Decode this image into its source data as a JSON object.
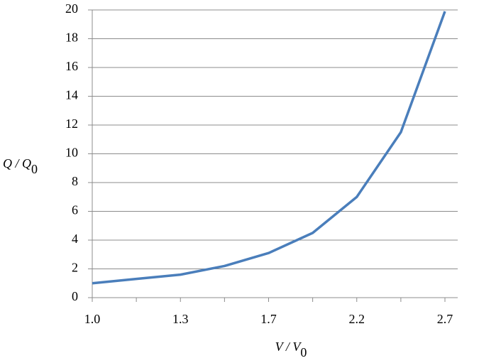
{
  "chart_data": {
    "type": "line",
    "x_label": "V / V",
    "x_label_subscript": "0",
    "y_label": "Q / Q",
    "y_label_subscript": "0",
    "categories": [
      "1.0",
      null,
      "1.3",
      null,
      "1.7",
      null,
      "2.2",
      null,
      "2.7"
    ],
    "series": [
      {
        "color": "#4a7ebb",
        "values": [
          1.0,
          1.3,
          1.6,
          2.2,
          3.1,
          4.5,
          7.0,
          11.5,
          19.9
        ]
      }
    ],
    "ylim": [
      0,
      20
    ],
    "yticks": [
      0,
      2,
      4,
      6,
      8,
      10,
      12,
      14,
      16,
      18,
      20
    ],
    "grid": true
  }
}
